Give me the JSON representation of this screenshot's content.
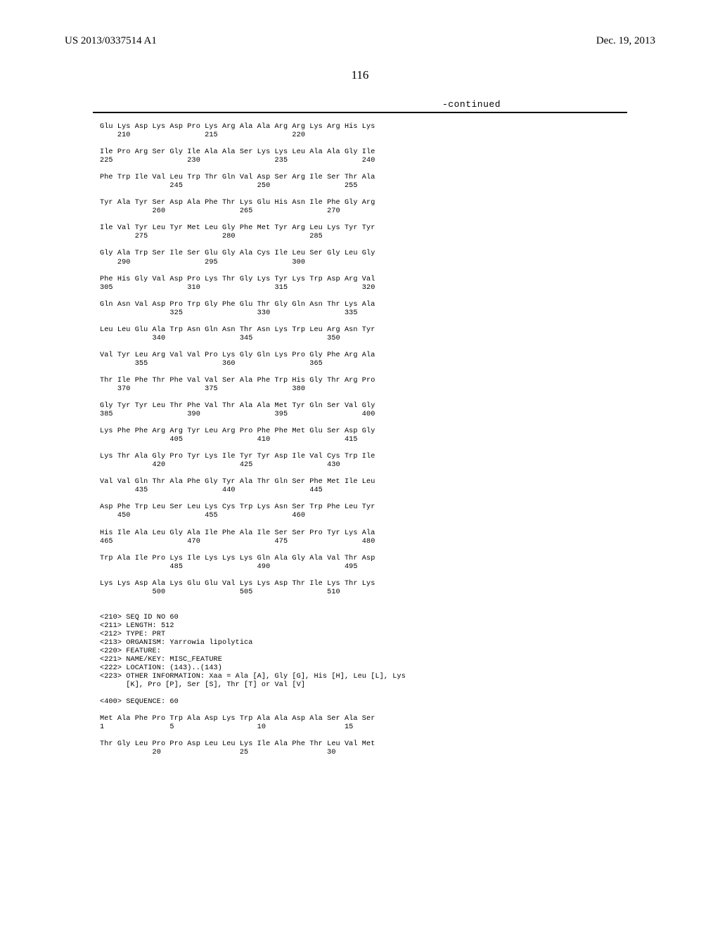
{
  "header": {
    "left": "US 2013/0337514 A1",
    "right": "Dec. 19, 2013"
  },
  "page_number": "116",
  "continued_label": "-continued",
  "sequence_rows": [
    "Glu Lys Asp Lys Asp Pro Lys Arg Ala Ala Arg Arg Lys Arg His Lys",
    "    210                 215                 220",
    "",
    "Ile Pro Arg Ser Gly Ile Ala Ala Ser Lys Lys Leu Ala Ala Gly Ile",
    "225                 230                 235                 240",
    "",
    "Phe Trp Ile Val Leu Trp Thr Gln Val Asp Ser Arg Ile Ser Thr Ala",
    "                245                 250                 255",
    "",
    "Tyr Ala Tyr Ser Asp Ala Phe Thr Lys Glu His Asn Ile Phe Gly Arg",
    "            260                 265                 270",
    "",
    "Ile Val Tyr Leu Tyr Met Leu Gly Phe Met Tyr Arg Leu Lys Tyr Tyr",
    "        275                 280                 285",
    "",
    "Gly Ala Trp Ser Ile Ser Glu Gly Ala Cys Ile Leu Ser Gly Leu Gly",
    "    290                 295                 300",
    "",
    "Phe His Gly Val Asp Pro Lys Thr Gly Lys Tyr Lys Trp Asp Arg Val",
    "305                 310                 315                 320",
    "",
    "Gln Asn Val Asp Pro Trp Gly Phe Glu Thr Gly Gln Asn Thr Lys Ala",
    "                325                 330                 335",
    "",
    "Leu Leu Glu Ala Trp Asn Gln Asn Thr Asn Lys Trp Leu Arg Asn Tyr",
    "            340                 345                 350",
    "",
    "Val Tyr Leu Arg Val Val Pro Lys Gly Gln Lys Pro Gly Phe Arg Ala",
    "        355                 360                 365",
    "",
    "Thr Ile Phe Thr Phe Val Val Ser Ala Phe Trp His Gly Thr Arg Pro",
    "    370                 375                 380",
    "",
    "Gly Tyr Tyr Leu Thr Phe Val Thr Ala Ala Met Tyr Gln Ser Val Gly",
    "385                 390                 395                 400",
    "",
    "Lys Phe Phe Arg Arg Tyr Leu Arg Pro Phe Phe Met Glu Ser Asp Gly",
    "                405                 410                 415",
    "",
    "Lys Thr Ala Gly Pro Tyr Lys Ile Tyr Tyr Asp Ile Val Cys Trp Ile",
    "            420                 425                 430",
    "",
    "Val Val Gln Thr Ala Phe Gly Tyr Ala Thr Gln Ser Phe Met Ile Leu",
    "        435                 440                 445",
    "",
    "Asp Phe Trp Leu Ser Leu Lys Cys Trp Lys Asn Ser Trp Phe Leu Tyr",
    "    450                 455                 460",
    "",
    "His Ile Ala Leu Gly Ala Ile Phe Ala Ile Ser Ser Pro Tyr Lys Ala",
    "465                 470                 475                 480",
    "",
    "Trp Ala Ile Pro Lys Ile Lys Lys Lys Gln Ala Gly Ala Val Thr Asp",
    "                485                 490                 495",
    "",
    "Lys Lys Asp Ala Lys Glu Glu Val Lys Lys Asp Thr Ile Lys Thr Lys",
    "            500                 505                 510",
    "",
    "",
    "<210> SEQ ID NO 60",
    "<211> LENGTH: 512",
    "<212> TYPE: PRT",
    "<213> ORGANISM: Yarrowia lipolytica",
    "<220> FEATURE:",
    "<221> NAME/KEY: MISC_FEATURE",
    "<222> LOCATION: (143)..(143)",
    "<223> OTHER INFORMATION: Xaa = Ala [A], Gly [G], His [H], Leu [L], Lys",
    "      [K], Pro [P], Ser [S], Thr [T] or Val [V]",
    "",
    "<400> SEQUENCE: 60",
    "",
    "Met Ala Phe Pro Trp Ala Asp Lys Trp Ala Ala Asp Ala Ser Ala Ser",
    "1               5                   10                  15",
    "",
    "Thr Gly Leu Pro Pro Asp Leu Leu Lys Ile Ala Phe Thr Leu Val Met",
    "            20                  25                  30"
  ]
}
